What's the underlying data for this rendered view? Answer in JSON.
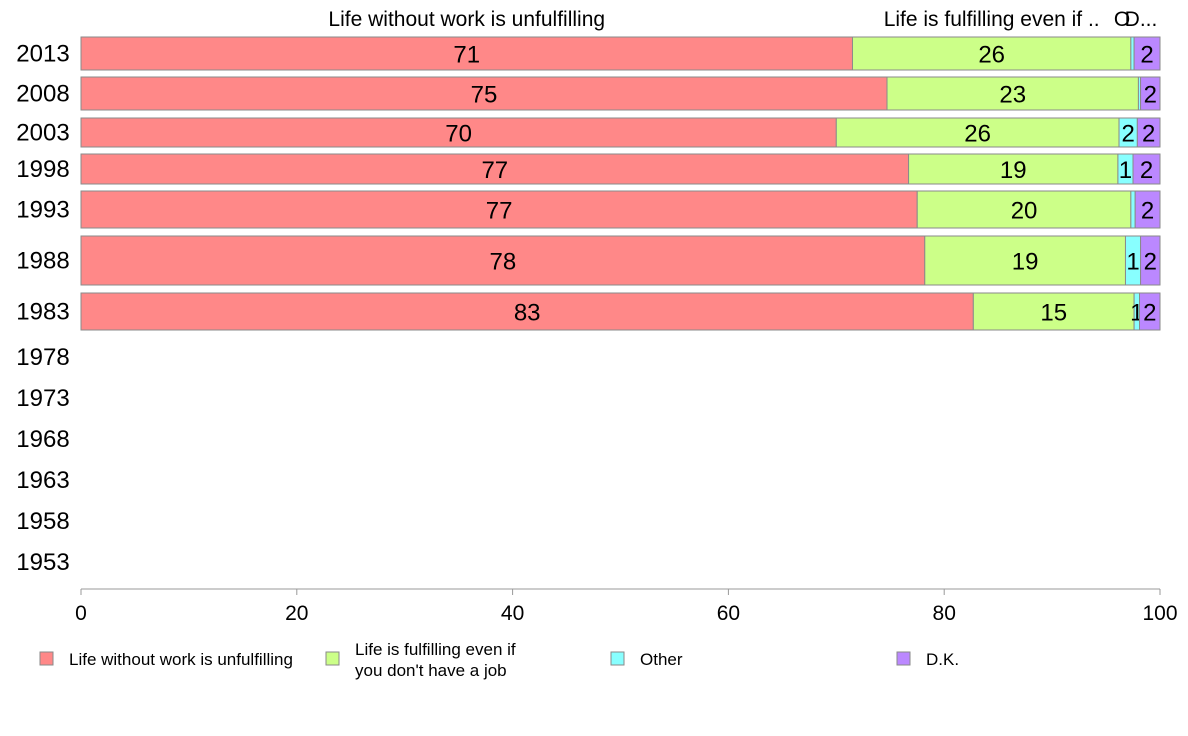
{
  "chart_data": {
    "type": "bar",
    "orientation": "horizontal",
    "stacked": true,
    "top_labels": [
      "Life without work is unfulfilling",
      "Life is fulfilling even if ..",
      "O",
      "D..."
    ],
    "categories": [
      "2013",
      "2008",
      "2003",
      "1998",
      "1993",
      "1988",
      "1983",
      "1978",
      "1973",
      "1968",
      "1963",
      "1958",
      "1953"
    ],
    "series": [
      {
        "name": "Life without work is unfulfilling",
        "color": "#ff8888",
        "values": [
          71.5,
          74.7,
          70.0,
          76.7,
          77.5,
          78.2,
          82.7,
          null,
          null,
          null,
          null,
          null,
          null
        ],
        "labels": [
          "71",
          "75",
          "70",
          "77",
          "77",
          "78",
          "83",
          "",
          "",
          "",
          "",
          "",
          ""
        ]
      },
      {
        "name": "Life is fulfilling even if you don't have a job",
        "color": "#ccff88",
        "values": [
          25.8,
          23.3,
          26.2,
          19.4,
          19.8,
          18.6,
          14.9,
          null,
          null,
          null,
          null,
          null,
          null
        ],
        "labels": [
          "26",
          "23",
          "26",
          "19",
          "20",
          "19",
          "15",
          "",
          "",
          "",
          "",
          "",
          ""
        ]
      },
      {
        "name": "Other",
        "color": "#88ffff",
        "values": [
          0.3,
          0.2,
          1.7,
          1.4,
          0.4,
          1.4,
          0.5,
          null,
          null,
          null,
          null,
          null,
          null
        ],
        "labels": [
          "",
          "",
          "2",
          "1",
          "",
          "1",
          "1",
          "",
          "",
          "",
          "",
          "",
          ""
        ]
      },
      {
        "name": "D.K.",
        "color": "#bb88ff",
        "values": [
          2.4,
          1.8,
          2.1,
          2.5,
          2.3,
          1.8,
          1.9,
          null,
          null,
          null,
          null,
          null,
          null
        ],
        "labels": [
          "2",
          "2",
          "2",
          "2",
          "2",
          "2",
          "2",
          "",
          "",
          "",
          "",
          "",
          ""
        ]
      }
    ],
    "xlim": [
      0,
      100
    ],
    "xticks": [
      "0",
      "20",
      "40",
      "60",
      "80",
      "100"
    ],
    "legend": {
      "position": "bottom",
      "entries": [
        {
          "lines": [
            "Life without work is unfulfilling"
          ],
          "color": "#ff8888"
        },
        {
          "lines": [
            "Life is fulfilling even if",
            "you don't have a job"
          ],
          "color": "#ccff88"
        },
        {
          "lines": [
            "Other"
          ],
          "color": "#88ffff"
        },
        {
          "lines": [
            "D.K."
          ],
          "color": "#bb88ff"
        }
      ]
    }
  }
}
